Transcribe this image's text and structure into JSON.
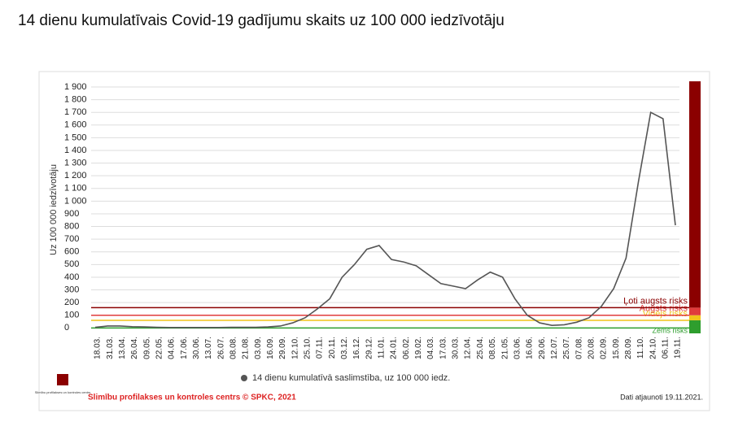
{
  "chart_data": {
    "type": "line",
    "title": "14 dienu kumulatīvais Covid-19 gadījumu skaits uz 100 000 iedzīvotāju",
    "y_label": "Uz 100 000 iedzīvotāju",
    "categories": [
      "18.03.",
      "31.03.",
      "13.04.",
      "26.04.",
      "09.05.",
      "22.05.",
      "04.06.",
      "17.06.",
      "30.06.",
      "13.07.",
      "26.07.",
      "08.08.",
      "21.08.",
      "03.09.",
      "16.09.",
      "29.09.",
      "12.10.",
      "25.10.",
      "07.11.",
      "20.11.",
      "03.12.",
      "16.12.",
      "29.12.",
      "11.01.",
      "24.01.",
      "06.02.",
      "19.02.",
      "04.03.",
      "17.03.",
      "30.03.",
      "12.04.",
      "25.04.",
      "08.05.",
      "21.05.",
      "03.06.",
      "16.06.",
      "29.06.",
      "12.07.",
      "25.07.",
      "07.08.",
      "20.08.",
      "02.09.",
      "15.09.",
      "28.09.",
      "11.10.",
      "24.10.",
      "06.11.",
      "19.11."
    ],
    "series": [
      {
        "name": "14 dienu kumulatīvā saslimstība, uz 100 000 iedz.",
        "color": "#555555",
        "values": [
          5,
          15,
          15,
          10,
          8,
          5,
          3,
          3,
          3,
          3,
          3,
          5,
          5,
          5,
          8,
          15,
          40,
          80,
          150,
          230,
          400,
          500,
          620,
          650,
          540,
          520,
          490,
          420,
          350,
          330,
          310,
          380,
          440,
          400,
          230,
          100,
          40,
          20,
          25,
          45,
          80,
          170,
          310,
          550,
          1150,
          1700,
          1650,
          810
        ]
      }
    ],
    "ylim": [
      -30,
      1900
    ],
    "yticks": [
      0,
      100,
      200,
      300,
      400,
      500,
      600,
      700,
      800,
      900,
      {
        "value": 1000,
        "label": "1 000"
      },
      {
        "value": 1100,
        "label": "1 100"
      },
      {
        "value": 1200,
        "label": "1 200"
      },
      {
        "value": 1300,
        "label": "1 300"
      },
      {
        "value": 1400,
        "label": "1 400"
      },
      {
        "value": 1500,
        "label": "1 500"
      },
      {
        "value": 1600,
        "label": "1 600"
      },
      {
        "value": 1700,
        "label": "1 700"
      },
      {
        "value": 1800,
        "label": "1 800"
      },
      {
        "value": 1900,
        "label": "1 900"
      }
    ],
    "grid": true,
    "risk_levels": [
      {
        "label": "Zems risks",
        "color": "#2e9e2e",
        "value": 0
      },
      {
        "label": "Vidējs risks",
        "color": "#f0c419",
        "value": 60
      },
      {
        "label": "Augsts risks",
        "color": "#e03c3c",
        "value": 100
      },
      {
        "label": "Ļoti augsts risks",
        "color": "#8b0000",
        "value": 160
      }
    ],
    "logo_text": "Slimību profilakses un kontroles centrs",
    "source": "Slimību profilakses un kontroles centrs © SPKC, 2021",
    "updated": "Dati atjaunoti 19.11.2021."
  }
}
